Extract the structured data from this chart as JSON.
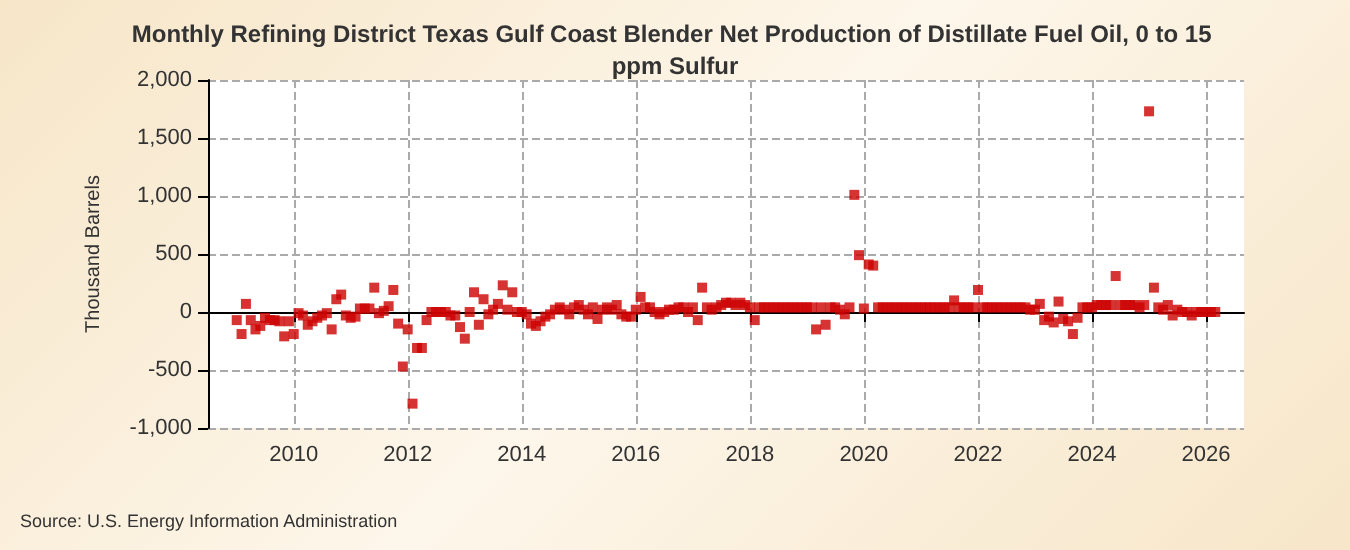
{
  "chart_data": {
    "type": "scatter",
    "title": "Monthly Refining District Texas Gulf Coast Blender Net Production of Distillate Fuel Oil, 0 to 15 ppm Sulfur",
    "ylabel": "Thousand Barrels",
    "annotations": [
      "Source: U.S. Energy Information Administration"
    ],
    "marker": "square",
    "grid": true,
    "xlim": [
      "2008-07",
      "2026-09"
    ],
    "xticks": [
      "2010",
      "2012",
      "2014",
      "2016",
      "2018",
      "2020",
      "2022",
      "2024",
      "2026"
    ],
    "ylim": [
      -1000,
      2000
    ],
    "yticks": [
      {
        "value": -1000,
        "label": "-1,000"
      },
      -500,
      0,
      500,
      {
        "value": 1000,
        "label": "1,000"
      },
      {
        "value": 1500,
        "label": "1,500"
      },
      {
        "value": 2000,
        "label": "2,000"
      }
    ],
    "x": [
      "2009-01",
      "2009-02",
      "2009-03",
      "2009-04",
      "2009-05",
      "2009-06",
      "2009-07",
      "2009-08",
      "2009-09",
      "2009-10",
      "2009-11",
      "2009-12",
      "2010-01",
      "2010-02",
      "2010-03",
      "2010-04",
      "2010-05",
      "2010-06",
      "2010-07",
      "2010-08",
      "2010-09",
      "2010-10",
      "2010-11",
      "2010-12",
      "2011-01",
      "2011-02",
      "2011-03",
      "2011-04",
      "2011-05",
      "2011-06",
      "2011-07",
      "2011-08",
      "2011-09",
      "2011-10",
      "2011-11",
      "2011-12",
      "2012-01",
      "2012-02",
      "2012-03",
      "2012-04",
      "2012-05",
      "2012-06",
      "2012-07",
      "2012-08",
      "2012-09",
      "2012-10",
      "2012-11",
      "2012-12",
      "2013-01",
      "2013-02",
      "2013-03",
      "2013-04",
      "2013-05",
      "2013-06",
      "2013-07",
      "2013-08",
      "2013-09",
      "2013-10",
      "2013-11",
      "2013-12",
      "2014-01",
      "2014-02",
      "2014-03",
      "2014-04",
      "2014-05",
      "2014-06",
      "2014-07",
      "2014-08",
      "2014-09",
      "2014-10",
      "2014-11",
      "2014-12",
      "2015-01",
      "2015-02",
      "2015-03",
      "2015-04",
      "2015-05",
      "2015-06",
      "2015-07",
      "2015-08",
      "2015-09",
      "2015-10",
      "2015-11",
      "2015-12",
      "2016-01",
      "2016-02",
      "2016-03",
      "2016-04",
      "2016-05",
      "2016-06",
      "2016-07",
      "2016-08",
      "2016-09",
      "2016-10",
      "2016-11",
      "2016-12",
      "2017-01",
      "2017-02",
      "2017-03",
      "2017-04",
      "2017-05",
      "2017-06",
      "2017-07",
      "2017-08",
      "2017-09",
      "2017-10",
      "2017-11",
      "2017-12",
      "2018-01",
      "2018-02",
      "2018-03",
      "2018-04",
      "2018-05",
      "2018-06",
      "2018-07",
      "2018-08",
      "2018-09",
      "2018-10",
      "2018-11",
      "2018-12",
      "2019-01",
      "2019-02",
      "2019-03",
      "2019-04",
      "2019-05",
      "2019-06",
      "2019-07",
      "2019-08",
      "2019-09",
      "2019-10",
      "2019-11",
      "2019-12",
      "2020-01",
      "2020-02",
      "2020-03",
      "2020-04",
      "2020-05",
      "2020-06",
      "2020-07",
      "2020-08",
      "2020-09",
      "2020-10",
      "2020-11",
      "2020-12",
      "2021-01",
      "2021-02",
      "2021-03",
      "2021-04",
      "2021-05",
      "2021-06",
      "2021-07",
      "2021-08",
      "2021-09",
      "2021-10",
      "2021-11",
      "2021-12",
      "2022-01",
      "2022-02",
      "2022-03",
      "2022-04",
      "2022-05",
      "2022-06",
      "2022-07",
      "2022-08",
      "2022-09",
      "2022-10",
      "2022-11",
      "2022-12",
      "2023-01",
      "2023-02",
      "2023-03",
      "2023-04",
      "2023-05",
      "2023-06",
      "2023-07",
      "2023-08",
      "2023-09",
      "2023-10",
      "2023-11",
      "2023-12",
      "2024-01",
      "2024-02",
      "2024-03",
      "2024-04",
      "2024-05",
      "2024-06",
      "2024-07",
      "2024-08",
      "2024-09",
      "2024-10",
      "2024-11",
      "2024-12",
      "2025-01",
      "2025-02",
      "2025-03",
      "2025-04",
      "2025-05",
      "2025-06",
      "2025-07",
      "2025-08",
      "2025-09",
      "2025-10",
      "2025-11",
      "2025-12",
      "2026-01",
      "2026-02",
      "2026-03"
    ],
    "series": [
      {
        "color": "#cc0000",
        "values": [
          -70,
          -190,
          70,
          -70,
          -150,
          -120,
          -50,
          -70,
          -70,
          -80,
          -210,
          -80,
          -190,
          -10,
          -30,
          -110,
          -80,
          -50,
          -30,
          -10,
          -150,
          110,
          150,
          -30,
          -50,
          -40,
          30,
          30,
          30,
          210,
          -10,
          10,
          50,
          190,
          -100,
          -470,
          -150,
          -790,
          -310,
          -310,
          -70,
          0,
          0,
          0,
          0,
          -30,
          -30,
          -130,
          -230,
          0,
          170,
          -110,
          110,
          -20,
          20,
          70,
          230,
          20,
          170,
          0,
          0,
          -20,
          -100,
          -120,
          -80,
          -40,
          -20,
          20,
          40,
          20,
          -20,
          40,
          60,
          20,
          -20,
          40,
          -60,
          20,
          40,
          20,
          60,
          -20,
          -40,
          -40,
          20,
          130,
          40,
          40,
          0,
          -20,
          0,
          20,
          20,
          40,
          40,
          0,
          40,
          -70,
          210,
          40,
          20,
          40,
          60,
          80,
          80,
          60,
          80,
          60,
          40,
          -70,
          40,
          40,
          40,
          40,
          40,
          40,
          40,
          40,
          40,
          40,
          40,
          40,
          -150,
          40,
          -110,
          40,
          40,
          20,
          -20,
          40,
          1010,
          490,
          30,
          410,
          400,
          40,
          40,
          40,
          40,
          40,
          40,
          40,
          40,
          40,
          40,
          40,
          40,
          40,
          40,
          40,
          40,
          100,
          40,
          40,
          40,
          40,
          190,
          40,
          40,
          40,
          40,
          40,
          40,
          40,
          40,
          40,
          40,
          20,
          20,
          70,
          -70,
          -40,
          -90,
          90,
          -60,
          -80,
          -190,
          -50,
          40,
          40,
          40,
          60,
          60,
          60,
          60,
          310,
          60,
          60,
          60,
          60,
          40,
          60,
          1730,
          210,
          40,
          20,
          60,
          -30,
          20,
          0,
          0,
          -30,
          0,
          0,
          0,
          0,
          0
        ]
      }
    ]
  }
}
